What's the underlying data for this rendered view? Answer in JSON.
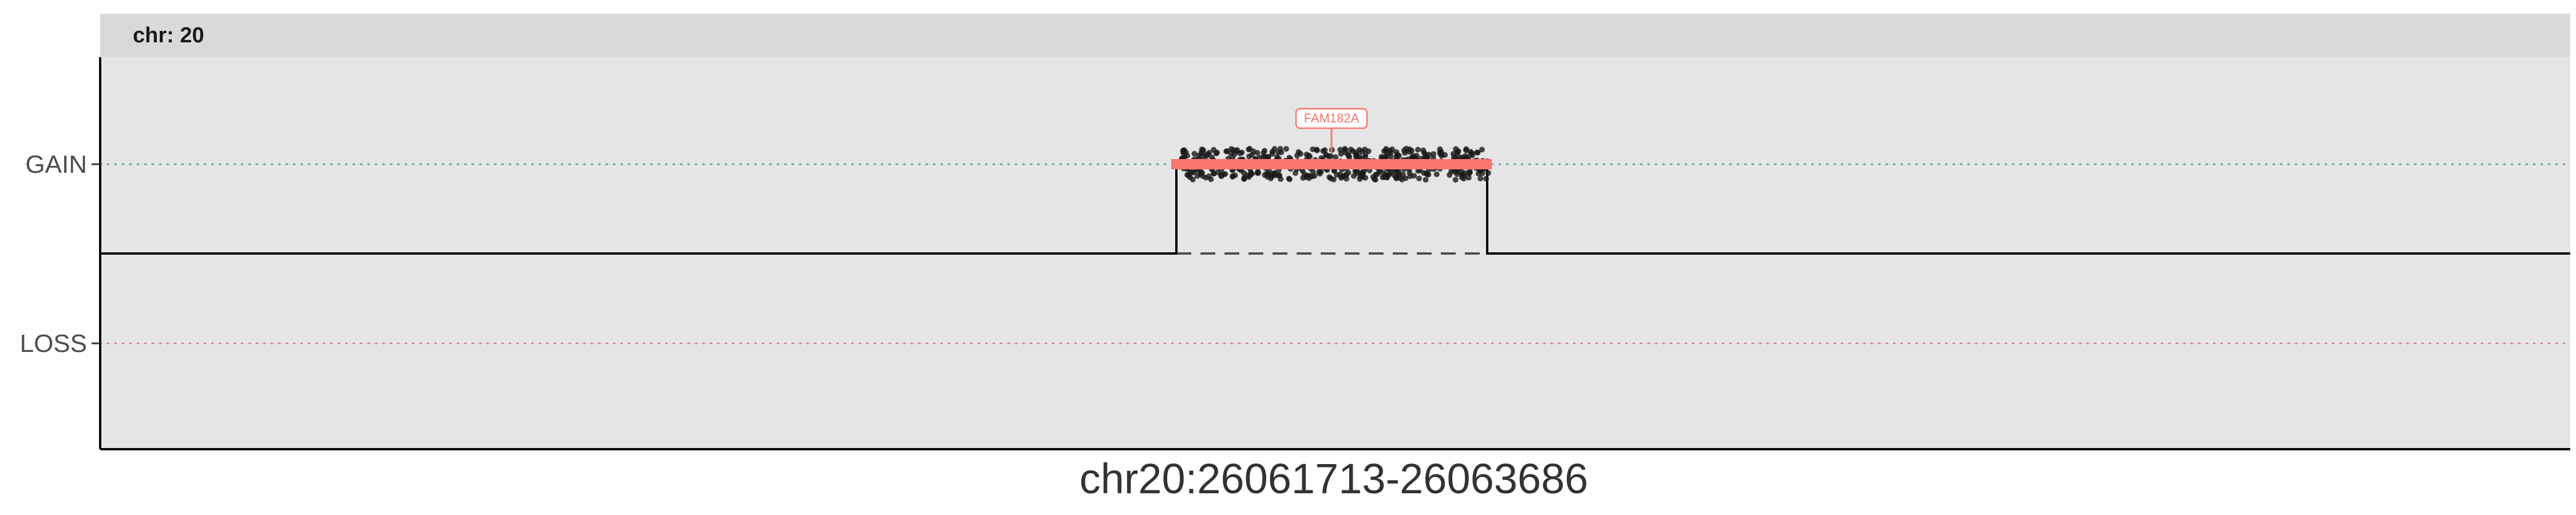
{
  "chart_data": {
    "type": "scatter",
    "facet_label": "chr: 20",
    "xlabel": "chr20:26061713-26063686",
    "y_categories": [
      "GAIN",
      "LOSS"
    ],
    "grid": false,
    "colors": {
      "panel": "#e5e5e5",
      "strip": "#d9d9d9",
      "gain_line": "#6f9f9f",
      "loss_line": "#d8878b",
      "segment": "#f8766d",
      "points": "#1a1a1a",
      "step_line": "#000000"
    },
    "segments": [
      {
        "gene": "FAM182A",
        "state": "GAIN"
      }
    ]
  }
}
